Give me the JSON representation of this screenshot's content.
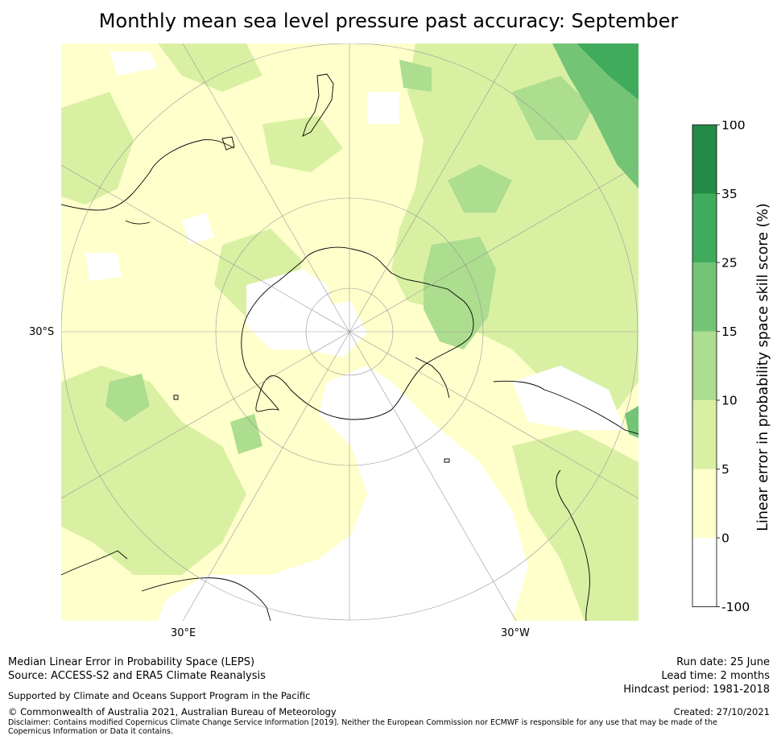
{
  "title": "Monthly mean sea level pressure past accuracy: September",
  "map": {
    "projection_labels": {
      "left": "30°S",
      "bottom_left": "30°E",
      "bottom_right": "30°W"
    }
  },
  "colorbar": {
    "label": "Linear error in probability space skill score (%)",
    "ticks": [
      "100",
      "35",
      "25",
      "15",
      "10",
      "5",
      "0",
      "-100"
    ],
    "bands": [
      {
        "range": "35 to 100",
        "color": "#238b45"
      },
      {
        "range": "25 to 35",
        "color": "#41ab5d"
      },
      {
        "range": "15 to 25",
        "color": "#74c476"
      },
      {
        "range": "10 to 15",
        "color": "#addd8e"
      },
      {
        "range": "5 to 10",
        "color": "#d9f0a3"
      },
      {
        "range": "0 to 5",
        "color": "#ffffcc"
      },
      {
        "range": "-100 to 0",
        "color": "#ffffff"
      }
    ]
  },
  "footer": {
    "left": {
      "line1": "Median Linear Error in Probability Space (LEPS)",
      "line2": "Source: ACCESS-S2 and ERA5 Climate Reanalysis",
      "line3": "Supported by Climate and Oceans Support Program in the Pacific",
      "line4": "© Commonwealth of Australia 2021, Australian Bureau of Meteorology",
      "disclaimer": "Disclaimer: Contains modified Copernicus Climate Change Service Information [2019]. Neither the European Commission nor ECMWF is responsible for any use that may be made of the Copernicus Information or Data it contains."
    },
    "right": {
      "run_date": "Run date: 25 June",
      "lead_time": "Lead time: 2 months",
      "hindcast": "Hindcast period: 1981-2018",
      "created": "Created: 27/10/2021"
    }
  }
}
